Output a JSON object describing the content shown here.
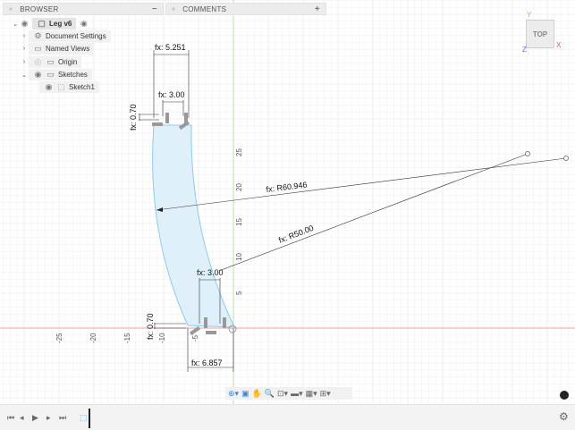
{
  "browser": {
    "title": "BROWSER",
    "collapse_label": "−",
    "items": [
      {
        "label": "Leg v6"
      },
      {
        "label": "Document Settings"
      },
      {
        "label": "Named Views"
      },
      {
        "label": "Origin"
      },
      {
        "label": "Sketches"
      },
      {
        "label": "Sketch1"
      }
    ]
  },
  "comments": {
    "title": "COMMENTS",
    "add_label": "+"
  },
  "viewcube": {
    "face": "TOP",
    "x": "X",
    "y": "Y",
    "z": "Z"
  },
  "dimensions": {
    "top_width": "fx: 5.251",
    "top_inner": "fx: 3.00",
    "top_height": "fx: 0.70",
    "outer_radius": "fx: R60.946",
    "inner_radius": "fx: R50.00",
    "bottom_inner": "fx: 3.00",
    "bottom_height": "fx: 0.70",
    "bottom_width": "fx: 6.857"
  },
  "axis_ticks": {
    "y": [
      "5",
      "10",
      "15",
      "20",
      "25"
    ],
    "x": [
      "-5",
      "-10",
      "-15",
      "-20",
      "-25"
    ]
  },
  "colors": {
    "profile_fill": "#dff0fb",
    "profile_stroke": "#8ccbed",
    "x_axis": "#f2a0a0",
    "y_axis": "#b6e3a6"
  }
}
